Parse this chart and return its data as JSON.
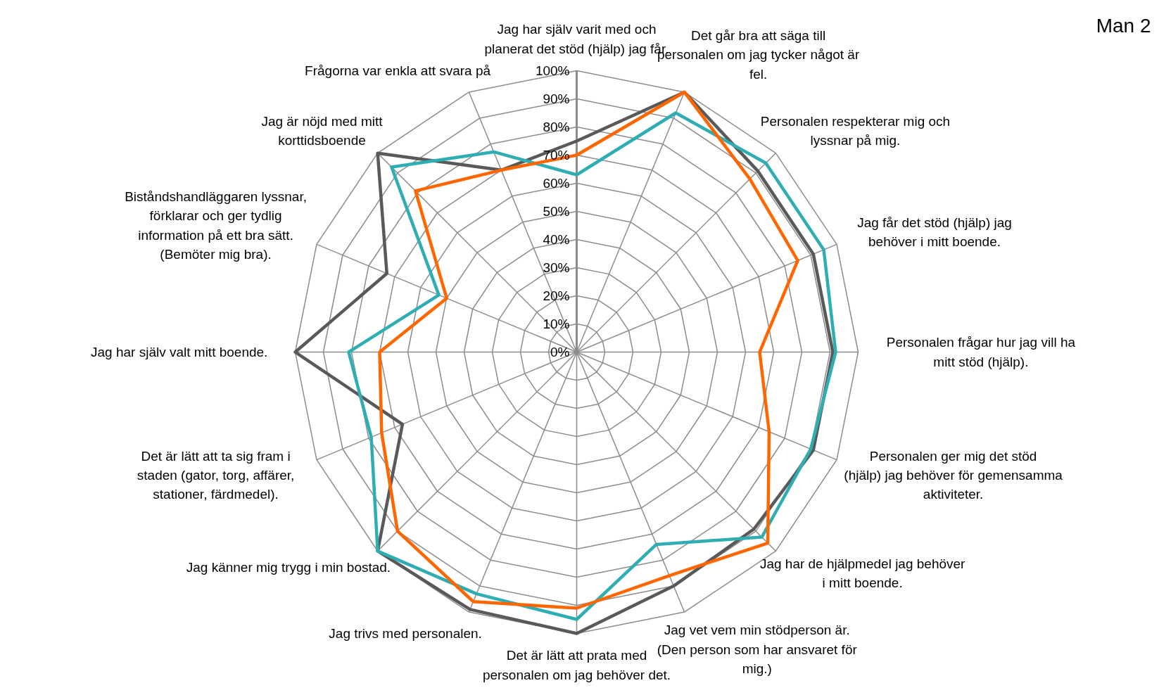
{
  "chart_data": {
    "type": "radar",
    "title": "Man 2",
    "categories": [
      "Jag har själv varit med och planerat det stöd (hjälp) jag får.",
      "Det går bra att säga till personalen om jag tycker något är fel.",
      "Personalen respekterar mig och lyssnar på mig.",
      "Jag får det stöd (hjälp) jag behöver i mitt boende.",
      "Personalen frågar hur jag vill ha mitt stöd (hjälp).",
      "Personalen ger mig det stöd (hjälp) jag behöver för gemensamma aktiviteter.",
      "Jag har de hjälpmedel jag behöver i mitt boende.",
      "Jag vet vem min stödperson är. (Den person som har ansvaret för mig.)",
      "Det är lätt att prata med personalen om jag behöver det.",
      "Jag trivs med personalen.",
      "Jag känner mig trygg i min bostad.",
      "Det är lätt att ta sig fram i staden (gator, torg, affärer, stationer, färdmedel).",
      "Jag har själv valt mitt boende.",
      "Biståndshandläggaren lyssnar, förklarar och ger tydlig information på ett bra sätt. (Bemöter mig bra).",
      "Jag är nöjd med mitt korttidsboende",
      "Frågorna var enkla att svara på"
    ],
    "series": [
      {
        "color": "#595959",
        "values": [
          75,
          100,
          91,
          91,
          91,
          91,
          89,
          90,
          100,
          99,
          100,
          67,
          100,
          73,
          100,
          70
        ]
      },
      {
        "color": "#2eaeb3",
        "values": [
          63,
          92,
          95,
          95,
          92,
          90,
          93,
          74,
          95,
          93,
          100,
          79,
          81,
          53,
          93,
          77
        ]
      },
      {
        "color": "#ff6600",
        "values": [
          70,
          100,
          87,
          85,
          65,
          74,
          96,
          86,
          91,
          96,
          90,
          75,
          70,
          50,
          81,
          70
        ]
      }
    ],
    "ylim": [
      0,
      100
    ],
    "yticks": [
      {
        "value": 0,
        "label": "0%"
      },
      {
        "value": 10,
        "label": "10%"
      },
      {
        "value": 20,
        "label": "20%"
      },
      {
        "value": 30,
        "label": "30%"
      },
      {
        "value": 40,
        "label": "40%"
      },
      {
        "value": 50,
        "label": "50%"
      },
      {
        "value": 60,
        "label": "60%"
      },
      {
        "value": 70,
        "label": "70%"
      },
      {
        "value": 80,
        "label": "80%"
      },
      {
        "value": 90,
        "label": "90%"
      },
      {
        "value": 100,
        "label": "100%"
      }
    ],
    "grid": true
  }
}
